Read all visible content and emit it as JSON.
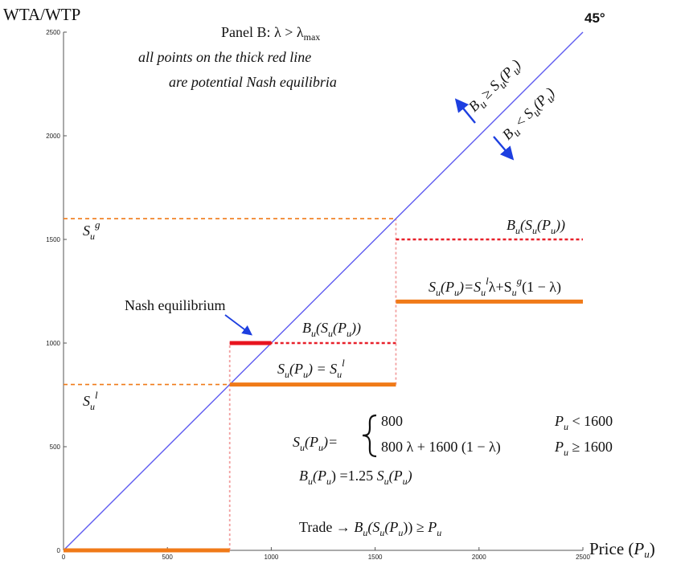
{
  "chart_data": {
    "type": "line",
    "ylabel": "WTA/WTP",
    "xlabel": "Price (",
    "xlabel_var": "P",
    "xlabel_sub": "u",
    "xlabel_close": ")",
    "xlim": [
      0,
      2500
    ],
    "ylim": [
      0,
      2500
    ],
    "xticks": [
      "0",
      "500",
      "1000",
      "1500",
      "2000",
      "2500"
    ],
    "yticks": [
      "0",
      "500",
      "1000",
      "1500",
      "2000",
      "2500"
    ],
    "diagonal_label": "45°",
    "panel_title": "Panel B: λ > λ",
    "panel_title_sub": "max",
    "panel_note_1": "all points on the thick red line",
    "panel_note_2": "are potential Nash equilibria",
    "series": {
      "diagonal": [
        [
          0,
          0
        ],
        [
          2500,
          2500
        ]
      ],
      "seller_low": [
        [
          0,
          0
        ],
        [
          800,
          0
        ]
      ],
      "seller_mid": [
        [
          800,
          800
        ],
        [
          1600,
          800
        ]
      ],
      "seller_high": [
        [
          1600,
          1200
        ],
        [
          2500,
          1200
        ]
      ],
      "buyer_mid": [
        [
          800,
          1000
        ],
        [
          1600,
          1000
        ]
      ],
      "buyer_high": [
        [
          1600,
          1500
        ],
        [
          2500,
          1500
        ]
      ],
      "nash": [
        [
          800,
          1000
        ],
        [
          1000,
          1000
        ]
      ],
      "ref_high": [
        [
          0,
          1600
        ],
        [
          1600,
          1600
        ]
      ],
      "ref_low": [
        [
          0,
          800
        ],
        [
          800,
          800
        ]
      ],
      "vert_800": [
        [
          800,
          0
        ],
        [
          800,
          1000
        ]
      ],
      "vert_1600": [
        [
          1600,
          800
        ],
        [
          1600,
          1600
        ]
      ]
    },
    "colors": {
      "diagonal": "#5f5cf0",
      "seller": "#f07a18",
      "buyer": "#e8202a",
      "nash": "#e8141e",
      "ref": "#f07a18",
      "vertical": "#f2a0a0",
      "arrow": "#1d3fe0"
    },
    "annotations": {
      "Sg": {
        "base": "S",
        "sub": "u",
        "sup": "g"
      },
      "Sl": {
        "base": "S",
        "sub": "u",
        "sup": "l"
      },
      "nash_eq": "Nash equilibrium",
      "BuSu": "B(S(P))",
      "Su_eq_Sl": "S(P) = S",
      "Su_mix": "S(P)=Sλ+S(1 − λ)",
      "Bu_ge": "B ≥ S(P)",
      "Bu_lt": "B < S(P)"
    },
    "formulas": {
      "su_def_lhs": "S(P)=",
      "case1_value": "800",
      "case1_cond": "P < 1600",
      "case2_value": "800 λ + 1600 (1 − λ)",
      "case2_cond": "P ≥ 1600",
      "bu_def": "B(P) =1.25 S(P)",
      "trade": "Trade → B(S(P)) ≥ P"
    }
  }
}
